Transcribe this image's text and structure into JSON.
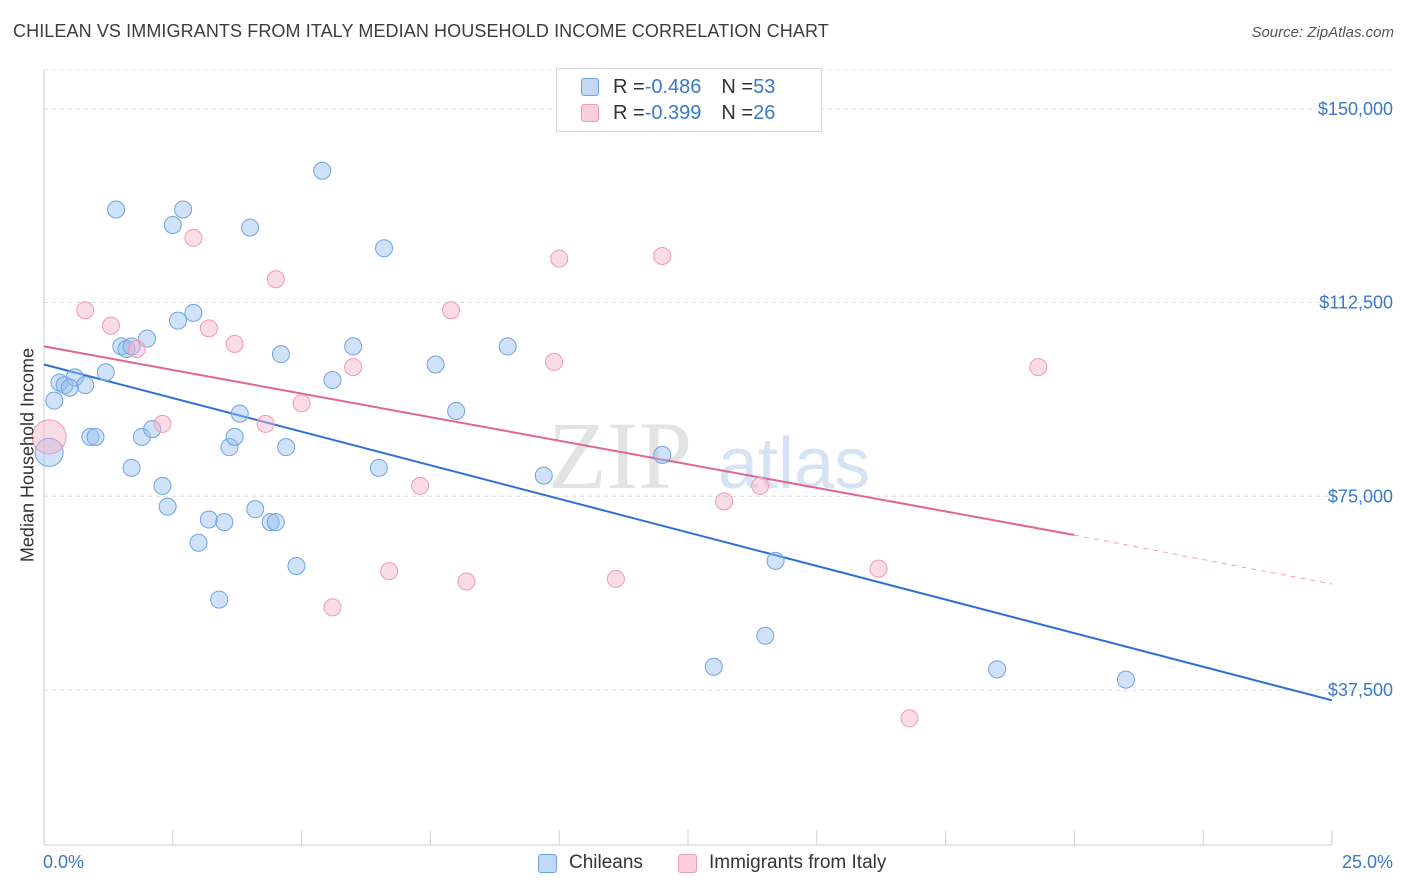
{
  "title": "CHILEAN VS IMMIGRANTS FROM ITALY MEDIAN HOUSEHOLD INCOME CORRELATION CHART",
  "source": "Source: ZipAtlas.com",
  "watermark": {
    "zip": "ZIP",
    "atlas": "atlas"
  },
  "legend_top": {
    "rows": [
      {
        "r_label": "R = ",
        "r_value": "-0.486",
        "n_label": "N = ",
        "n_value": "53"
      },
      {
        "r_label": "R = ",
        "r_value": "-0.399",
        "n_label": "N = ",
        "n_value": "26"
      }
    ]
  },
  "chart_data": {
    "type": "scatter",
    "title": "CHILEAN VS IMMIGRANTS FROM ITALY MEDIAN HOUSEHOLD INCOME CORRELATION CHART",
    "xlabel": "",
    "ylabel": "Median Household Income",
    "xlim": [
      0,
      25
    ],
    "ylim": [
      7500,
      157500
    ],
    "x_tick_labels": [
      "0.0%",
      "25.0%"
    ],
    "y_ticks": [
      {
        "value": 37500,
        "label": "$37,500"
      },
      {
        "value": 75000,
        "label": "$75,000"
      },
      {
        "value": 112500,
        "label": "$112,500"
      },
      {
        "value": 150000,
        "label": "$150,000"
      }
    ],
    "grid": true,
    "legend_position": "bottom",
    "colors": {
      "chileans": "#6fa3e4",
      "italy": "#ef9ab7",
      "chileans_line": "#2f6fcf",
      "italy_line": "#e0668f",
      "tick_text": "#3a78c9"
    },
    "series": [
      {
        "name": "Chileans",
        "points": [
          [
            0.1,
            83500
          ],
          [
            0.2,
            93500
          ],
          [
            0.3,
            97000
          ],
          [
            0.4,
            96500
          ],
          [
            0.6,
            98000
          ],
          [
            0.8,
            96500
          ],
          [
            0.9,
            86500
          ],
          [
            1.0,
            86500
          ],
          [
            1.2,
            99000
          ],
          [
            1.4,
            130500
          ],
          [
            1.5,
            104000
          ],
          [
            1.6,
            103500
          ],
          [
            1.7,
            80500
          ],
          [
            1.9,
            86500
          ],
          [
            2.0,
            105500
          ],
          [
            2.1,
            88000
          ],
          [
            2.3,
            77000
          ],
          [
            2.4,
            73000
          ],
          [
            2.5,
            127500
          ],
          [
            2.6,
            109000
          ],
          [
            2.7,
            130500
          ],
          [
            2.9,
            110500
          ],
          [
            3.0,
            66000
          ],
          [
            3.2,
            70500
          ],
          [
            3.4,
            55000
          ],
          [
            3.5,
            70000
          ],
          [
            3.6,
            84500
          ],
          [
            3.7,
            86500
          ],
          [
            3.8,
            91000
          ],
          [
            4.0,
            127000
          ],
          [
            4.1,
            72500
          ],
          [
            4.4,
            70000
          ],
          [
            4.5,
            70000
          ],
          [
            4.6,
            102500
          ],
          [
            4.7,
            84500
          ],
          [
            4.9,
            61500
          ],
          [
            5.4,
            138000
          ],
          [
            5.6,
            97500
          ],
          [
            6.0,
            104000
          ],
          [
            6.5,
            80500
          ],
          [
            6.6,
            123000
          ],
          [
            7.6,
            100500
          ],
          [
            8.0,
            91500
          ],
          [
            9.0,
            104000
          ],
          [
            9.7,
            79000
          ],
          [
            12.0,
            83000
          ],
          [
            13.0,
            42000
          ],
          [
            14.0,
            48000
          ],
          [
            14.2,
            62500
          ],
          [
            18.5,
            41500
          ],
          [
            21.0,
            39500
          ],
          [
            0.5,
            96000
          ],
          [
            1.7,
            104000
          ]
        ]
      },
      {
        "name": "Immigrants from Italy",
        "points": [
          [
            0.1,
            86500
          ],
          [
            0.8,
            111000
          ],
          [
            1.3,
            108000
          ],
          [
            1.8,
            103500
          ],
          [
            2.3,
            89000
          ],
          [
            2.9,
            125000
          ],
          [
            3.2,
            107500
          ],
          [
            3.7,
            104500
          ],
          [
            4.3,
            89000
          ],
          [
            4.5,
            117000
          ],
          [
            5.0,
            93000
          ],
          [
            5.6,
            53500
          ],
          [
            6.0,
            100000
          ],
          [
            6.7,
            60500
          ],
          [
            7.3,
            77000
          ],
          [
            7.9,
            111000
          ],
          [
            8.2,
            58500
          ],
          [
            9.9,
            101000
          ],
          [
            10.0,
            121000
          ],
          [
            11.1,
            59000
          ],
          [
            12.0,
            121500
          ],
          [
            13.2,
            74000
          ],
          [
            13.9,
            77000
          ],
          [
            16.2,
            61000
          ],
          [
            16.8,
            32000
          ],
          [
            19.3,
            100000
          ]
        ]
      }
    ],
    "trend_lines": [
      {
        "series": "Chileans",
        "x": [
          0,
          25
        ],
        "y": [
          100500,
          35500
        ]
      },
      {
        "series": "Immigrants from Italy",
        "x": [
          0,
          20
        ],
        "y": [
          104000,
          67500
        ],
        "dashed_to": [
          25,
          58000
        ]
      }
    ]
  },
  "bottom_legend": {
    "items": [
      "Chileans",
      "Immigrants from Italy"
    ]
  }
}
